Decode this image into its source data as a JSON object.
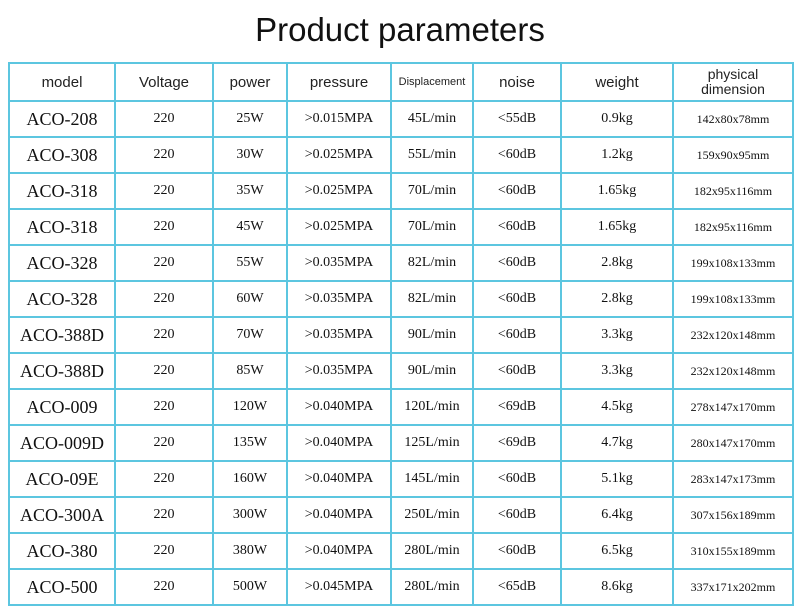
{
  "title": "Product parameters",
  "table": {
    "headers": [
      "model",
      "Voltage",
      "power",
      "pressure",
      "Displacement",
      "noise",
      "weight",
      "physical dimension"
    ],
    "rows": [
      [
        "ACO-208",
        "220",
        "25W",
        ">0.015MPA",
        "45L/min",
        "<55dB",
        "0.9kg",
        "142x80x78mm"
      ],
      [
        "ACO-308",
        "220",
        "30W",
        ">0.025MPA",
        "55L/min",
        "<60dB",
        "1.2kg",
        "159x90x95mm"
      ],
      [
        "ACO-318",
        "220",
        "35W",
        ">0.025MPA",
        "70L/min",
        "<60dB",
        "1.65kg",
        "182x95x116mm"
      ],
      [
        "ACO-318",
        "220",
        "45W",
        ">0.025MPA",
        "70L/min",
        "<60dB",
        "1.65kg",
        "182x95x116mm"
      ],
      [
        "ACO-328",
        "220",
        "55W",
        ">0.035MPA",
        "82L/min",
        "<60dB",
        "2.8kg",
        "199x108x133mm"
      ],
      [
        "ACO-328",
        "220",
        "60W",
        ">0.035MPA",
        "82L/min",
        "<60dB",
        "2.8kg",
        "199x108x133mm"
      ],
      [
        "ACO-388D",
        "220",
        "70W",
        ">0.035MPA",
        "90L/min",
        "<60dB",
        "3.3kg",
        "232x120x148mm"
      ],
      [
        "ACO-388D",
        "220",
        "85W",
        ">0.035MPA",
        "90L/min",
        "<60dB",
        "3.3kg",
        "232x120x148mm"
      ],
      [
        "ACO-009",
        "220",
        "120W",
        ">0.040MPA",
        "120L/min",
        "<69dB",
        "4.5kg",
        "278x147x170mm"
      ],
      [
        "ACO-009D",
        "220",
        "135W",
        ">0.040MPA",
        "125L/min",
        "<69dB",
        "4.7kg",
        "280x147x170mm"
      ],
      [
        "ACO-09E",
        "220",
        "160W",
        ">0.040MPA",
        "145L/min",
        "<60dB",
        "5.1kg",
        "283x147x173mm"
      ],
      [
        "ACO-300A",
        "220",
        "300W",
        ">0.040MPA",
        "250L/min",
        "<60dB",
        "6.4kg",
        "307x156x189mm"
      ],
      [
        "ACO-380",
        "220",
        "380W",
        ">0.040MPA",
        "280L/min",
        "<60dB",
        "6.5kg",
        "310x155x189mm"
      ],
      [
        "ACO-500",
        "220",
        "500W",
        ">0.045MPA",
        "280L/min",
        "<65dB",
        "8.6kg",
        "337x171x202mm"
      ]
    ]
  },
  "colors": {
    "grid": "#5cc6e0",
    "text": "#111111"
  }
}
